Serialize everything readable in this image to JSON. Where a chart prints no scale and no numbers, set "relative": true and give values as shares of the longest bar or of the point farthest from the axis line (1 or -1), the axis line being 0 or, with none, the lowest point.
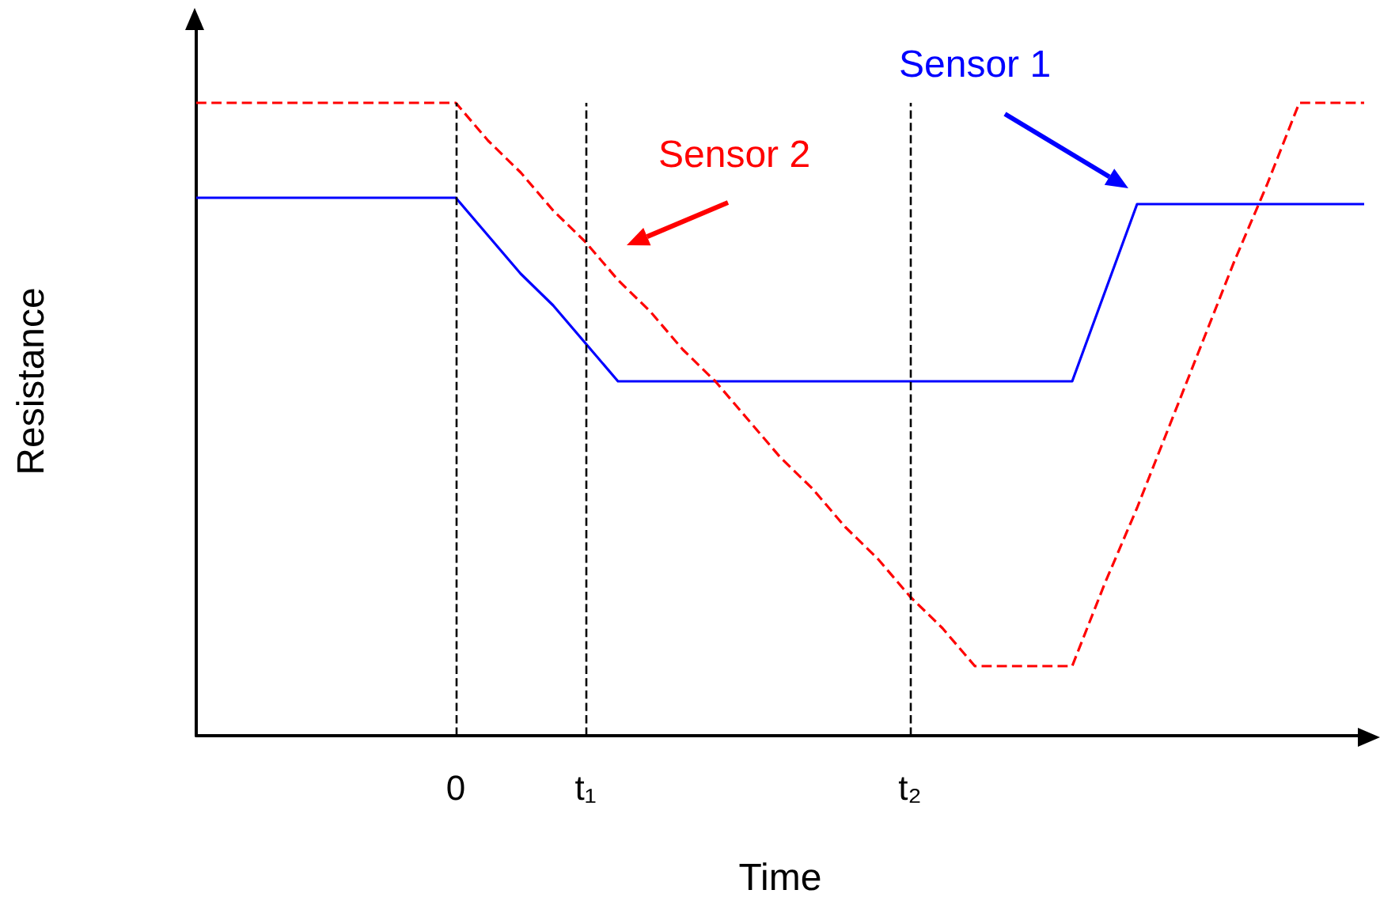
{
  "chart_data": {
    "type": "line",
    "relative": true,
    "xlabel": "Time",
    "ylabel": "Resistance",
    "legend": false,
    "grid": false,
    "tick_labels": "x",
    "categories": [
      null,
      null,
      null,
      null,
      null,
      null,
      null,
      null,
      "0",
      null,
      null,
      null,
      "t₁",
      null,
      null,
      null,
      null,
      null,
      null,
      null,
      null,
      null,
      "t₂",
      null,
      null,
      null,
      null,
      null,
      null,
      null,
      null,
      null,
      null,
      null,
      null,
      null,
      null
    ],
    "series": [
      {
        "name": "Sensor 1",
        "color": "#0000ff",
        "line_style": "solid",
        "values": [
          0.85,
          0.85,
          0.85,
          0.85,
          0.85,
          0.85,
          0.85,
          0.85,
          0.85,
          0.79,
          0.73,
          0.68,
          0.62,
          0.56,
          0.56,
          0.56,
          0.56,
          0.56,
          0.56,
          0.56,
          0.56,
          0.56,
          0.56,
          0.56,
          0.56,
          0.56,
          0.56,
          0.56,
          0.7,
          0.84,
          0.84,
          0.84,
          0.84,
          0.84,
          0.84,
          0.84,
          0.84
        ]
      },
      {
        "name": "Sensor 2",
        "color": "#ff0000",
        "line_style": "dashed",
        "values": [
          1,
          1,
          1,
          1,
          1,
          1,
          1,
          1,
          1,
          0.94,
          0.89,
          0.83,
          0.78,
          0.72,
          0.67,
          0.61,
          0.56,
          0.5,
          0.44,
          0.39,
          0.33,
          0.28,
          0.22,
          0.17,
          0.11,
          0.11,
          0.11,
          0.11,
          0.24,
          0.36,
          0.49,
          0.62,
          0.75,
          0.87,
          1,
          1,
          1
        ]
      }
    ],
    "ref_lines": [
      {
        "axis": "x",
        "value": "0",
        "color": "#000000",
        "line_style": "dashed"
      },
      {
        "axis": "x",
        "value": "t₁",
        "color": "#000000",
        "line_style": "dashed"
      },
      {
        "axis": "x",
        "value": "t₂",
        "color": "#000000",
        "line_style": "dashed"
      }
    ]
  }
}
